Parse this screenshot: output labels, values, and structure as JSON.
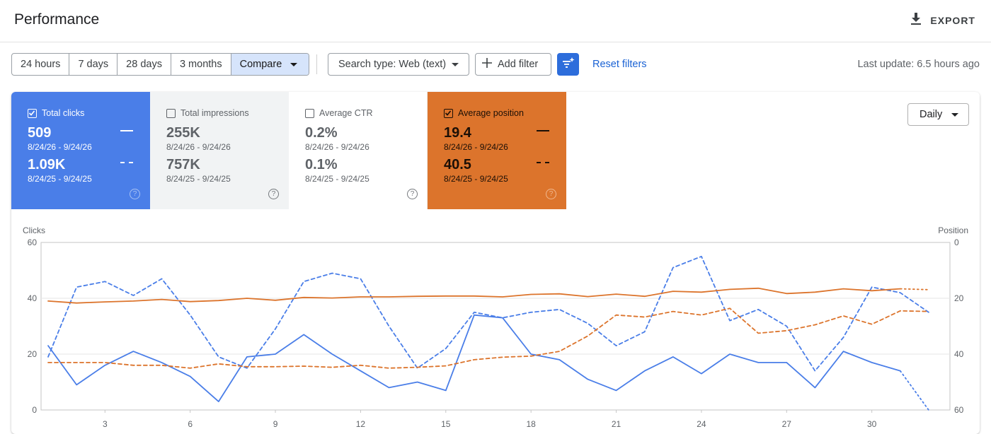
{
  "header": {
    "title": "Performance",
    "export_label": "EXPORT",
    "export_icon": "download-icon"
  },
  "toolbar": {
    "ranges": [
      "24 hours",
      "7 days",
      "28 days",
      "3 months"
    ],
    "compare_label": "Compare",
    "search_type_label": "Search type: Web (text)",
    "add_filter_label": "Add filter",
    "filter_icon": "filter-sparkle-icon",
    "reset_label": "Reset filters",
    "last_update": "Last update: 6.5 hours ago"
  },
  "cards": [
    {
      "title": "Total clicks",
      "checked": true,
      "value_current": "509",
      "range_current": "8/24/26 - 9/24/26",
      "value_previous": "1.09K",
      "range_previous": "8/24/25 - 9/24/25",
      "color": "#4a7ee8"
    },
    {
      "title": "Total impressions",
      "checked": false,
      "value_current": "255K",
      "range_current": "8/24/26 - 9/24/26",
      "value_previous": "757K",
      "range_previous": "8/24/25 - 9/24/25",
      "color": "#f1f3f4"
    },
    {
      "title": "Average CTR",
      "checked": false,
      "value_current": "0.2%",
      "range_current": "8/24/26 - 9/24/26",
      "value_previous": "0.1%",
      "range_previous": "8/24/25 - 9/24/25",
      "color": "#ffffff"
    },
    {
      "title": "Average position",
      "checked": true,
      "value_current": "19.4",
      "range_current": "8/24/26 - 9/24/26",
      "value_previous": "40.5",
      "range_previous": "8/24/25 - 9/24/25",
      "color": "#dc742c"
    }
  ],
  "granularity": "Daily",
  "chart_data": {
    "type": "line",
    "left_axis_label": "Clicks",
    "right_axis_label": "Position",
    "left_ticks": [
      "60",
      "40",
      "20",
      "0"
    ],
    "right_ticks": [
      "0",
      "20",
      "40",
      "60"
    ],
    "ylim_left": [
      0,
      60
    ],
    "ylim_right": [
      0,
      60
    ],
    "right_axis_inverted": true,
    "x_ticks": [
      "3",
      "6",
      "9",
      "12",
      "15",
      "18",
      "21",
      "24",
      "27",
      "30"
    ],
    "x_tick_days": [
      3,
      6,
      9,
      12,
      15,
      18,
      21,
      24,
      27,
      30
    ],
    "x_range": [
      0.75,
      32.75
    ],
    "grid": true,
    "series": [
      {
        "key": "clicks_current",
        "axis": "left",
        "style": "solid",
        "color": "#4a7ee8",
        "x": [
          1,
          2,
          3,
          4,
          5,
          6,
          7,
          8,
          9,
          10,
          11,
          12,
          13,
          14,
          15,
          16,
          17,
          18,
          19,
          20,
          21,
          22,
          23,
          24,
          25,
          26,
          27,
          28,
          29,
          30,
          31
        ],
        "values": [
          23,
          9,
          16,
          21,
          17,
          12,
          3,
          19,
          20,
          27,
          20,
          14,
          8,
          10,
          7,
          34,
          33,
          20,
          18,
          11,
          7,
          14,
          19,
          13,
          20,
          17,
          17,
          8,
          21,
          17,
          14
        ]
      },
      {
        "key": "clicks_current_partial",
        "axis": "left",
        "style": "dotted",
        "color": "#4a7ee8",
        "x": [
          31,
          32
        ],
        "values": [
          14,
          0
        ]
      },
      {
        "key": "clicks_previous",
        "axis": "left",
        "style": "dashed",
        "color": "#4a7ee8",
        "x": [
          1,
          2,
          3,
          4,
          5,
          6,
          7,
          8,
          9,
          10,
          11,
          12,
          13,
          14,
          15,
          16,
          17,
          18,
          19,
          20,
          21,
          22,
          23,
          24,
          25,
          26,
          27,
          28,
          29,
          30,
          31,
          32
        ],
        "values": [
          19,
          44,
          46,
          41,
          47,
          34,
          19,
          15,
          29,
          46,
          49,
          47,
          30,
          15,
          22,
          35,
          33,
          35,
          36,
          31,
          23,
          28,
          51,
          55,
          32,
          36,
          30,
          14,
          26,
          44,
          42,
          35
        ]
      },
      {
        "key": "position_current",
        "axis": "right",
        "style": "solid",
        "color": "#dc742c",
        "x": [
          1,
          2,
          3,
          4,
          5,
          6,
          7,
          8,
          9,
          10,
          11,
          12,
          13,
          14,
          15,
          16,
          17,
          18,
          19,
          20,
          21,
          22,
          23,
          24,
          25,
          26,
          27,
          28,
          29,
          30,
          31
        ],
        "values": [
          21,
          21.7,
          21.3,
          21,
          20.4,
          21.2,
          20.8,
          20,
          20.7,
          19.7,
          19.9,
          19.5,
          19.5,
          19.3,
          19.2,
          19.2,
          19.5,
          18.6,
          18.4,
          19.4,
          18.5,
          19.3,
          17.5,
          17.8,
          16.8,
          16.4,
          18.3,
          17.8,
          16.6,
          17.3,
          16.6
        ]
      },
      {
        "key": "position_current_partial",
        "axis": "right",
        "style": "dotted",
        "color": "#dc742c",
        "x": [
          31,
          32
        ],
        "values": [
          16.6,
          16.9
        ]
      },
      {
        "key": "position_previous",
        "axis": "right",
        "style": "dashed",
        "color": "#dc742c",
        "x": [
          1,
          2,
          3,
          4,
          5,
          6,
          7,
          8,
          9,
          10,
          11,
          12,
          13,
          14,
          15,
          16,
          17,
          18,
          19,
          20,
          21,
          22,
          23,
          24,
          25,
          26,
          27,
          28,
          29,
          30,
          31,
          32
        ],
        "values": [
          43,
          43,
          43,
          44,
          44,
          45,
          43.5,
          44.5,
          44.5,
          44.3,
          44.7,
          44,
          45,
          44.7,
          44.2,
          42,
          41.1,
          40.7,
          39,
          33.5,
          26,
          26.7,
          24.7,
          26,
          23.6,
          32.5,
          31.6,
          29.5,
          26.3,
          29.3,
          24.5,
          24.7
        ]
      }
    ]
  }
}
